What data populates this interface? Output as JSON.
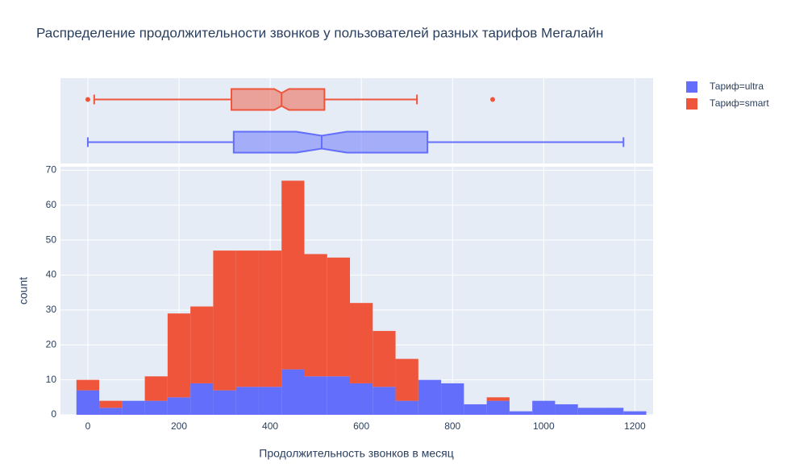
{
  "chart_data": {
    "type": "histogram",
    "title": "Распределение продолжительности звонков у пользователей разных тарифов Мегалайн",
    "x_label": "Продолжительность звонков в месяц",
    "y_label": "count",
    "bins": [
      -25,
      25,
      75,
      125,
      175,
      225,
      275,
      325,
      375,
      425,
      475,
      525,
      575,
      625,
      675,
      725,
      775,
      825,
      875,
      925,
      975,
      1025,
      1075,
      1125,
      1175,
      1225
    ],
    "barmode": "stack",
    "series": [
      {
        "name": "Тариф=ultra",
        "color": "#636efa",
        "values": [
          7,
          2,
          4,
          4,
          5,
          9,
          7,
          8,
          8,
          13,
          11,
          11,
          9,
          8,
          4,
          10,
          9,
          3,
          4,
          1,
          4,
          3,
          2,
          2,
          1
        ],
        "box": {
          "lowerfence": 0,
          "q1": 320,
          "median": 513,
          "q3": 745,
          "upperfence": 1175,
          "notchspan": [
            457,
            568
          ],
          "outliers": []
        }
      },
      {
        "name": "Тариф=smart",
        "color": "#ef553b",
        "values": [
          3,
          2,
          0,
          7,
          24,
          22,
          40,
          39,
          39,
          54,
          35,
          34,
          23,
          16,
          12,
          0,
          0,
          0,
          1,
          0,
          0,
          0,
          0,
          0,
          0
        ],
        "box": {
          "lowerfence": 14,
          "q1": 315,
          "median": 425,
          "q3": 519,
          "upperfence": 722,
          "notchspan": [
            409,
            441
          ],
          "outliers": [
            0,
            888
          ]
        }
      }
    ],
    "xlim": [
      -60,
      1240
    ],
    "xticks": [
      0,
      200,
      400,
      600,
      800,
      1000,
      1200
    ],
    "ylim": [
      0,
      71
    ],
    "yticks": [
      0,
      10,
      20,
      30,
      40,
      50,
      60,
      70
    ],
    "grid": true
  }
}
